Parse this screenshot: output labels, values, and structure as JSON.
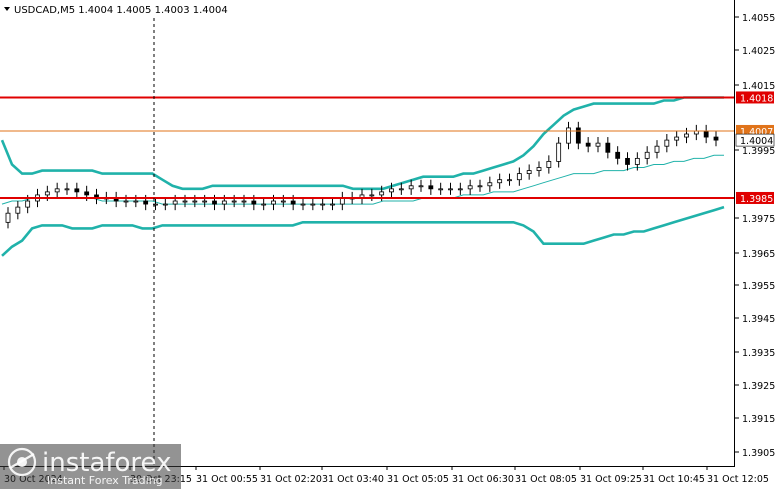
{
  "chart_data": {
    "type": "candlestick",
    "title": "USDCAD,M5  1.4004 1.4005 1.4003 1.4004",
    "symbol": "USDCAD",
    "timeframe": "M5",
    "ohlc_current": {
      "open": 1.4004,
      "high": 1.4005,
      "low": 1.4003,
      "close": 1.4004
    },
    "ylim": [
      1.3897,
      1.405
    ],
    "y_ticks": [
      "1.4055",
      "1.4025",
      "1.4015",
      "1.3995",
      "1.3975",
      "1.3965",
      "1.3955",
      "1.3945",
      "1.3935",
      "1.3925",
      "1.3915",
      "1.3905"
    ],
    "y_tick_values": [
      1.4055,
      1.4025,
      1.4015,
      1.3995,
      1.3975,
      1.3965,
      1.3955,
      1.3945,
      1.3935,
      1.3925,
      1.3915,
      1.3905
    ],
    "x_ticks": [
      "30 Oct 2024",
      "30 Oct 23:15",
      "31 Oct 00:55",
      "31 Oct 02:20",
      "31 Oct 03:40",
      "31 Oct 05:05",
      "31 Oct 06:30",
      "31 Oct 08:05",
      "31 Oct 09:25",
      "31 Oct 10:45",
      "31 Oct 12:05"
    ],
    "levels": [
      {
        "name": "resistance",
        "value": 1.4018,
        "label": "1.4018",
        "color": "#e00000"
      },
      {
        "name": "target",
        "value": 1.4007,
        "label": "1.4007",
        "color": "#e0731a"
      },
      {
        "name": "support",
        "value": 1.3985,
        "label": "1.3985",
        "color": "#e00000"
      }
    ],
    "current_price": {
      "value": 1.4004,
      "label": "1.4004"
    },
    "series": [
      {
        "name": "close",
        "values": [
          1.398,
          1.3982,
          1.3984,
          1.3986,
          1.3987,
          1.3988,
          1.3988,
          1.3987,
          1.3986,
          1.3985,
          1.3985,
          1.3984,
          1.3984,
          1.3984,
          1.3983,
          1.3983,
          1.3983,
          1.3984,
          1.3984,
          1.3984,
          1.3984,
          1.3983,
          1.3984,
          1.3984,
          1.3984,
          1.3983,
          1.3983,
          1.3984,
          1.3984,
          1.3983,
          1.3983,
          1.3983,
          1.3983,
          1.3983,
          1.3985,
          1.3985,
          1.3986,
          1.3986,
          1.3987,
          1.3988,
          1.3988,
          1.3989,
          1.3989,
          1.3988,
          1.3988,
          1.3988,
          1.3988,
          1.3989,
          1.3989,
          1.399,
          1.3991,
          1.3991,
          1.3993,
          1.3994,
          1.3995,
          1.3997,
          1.4003,
          1.4008,
          1.4003,
          1.4002,
          1.4003,
          1.4,
          1.3998,
          1.3996,
          1.3998,
          1.4,
          1.4002,
          1.4004,
          1.4005,
          1.4006,
          1.4007,
          1.4005,
          1.4004
        ]
      },
      {
        "name": "bollinger_upper",
        "values": [
          1.4004,
          1.3996,
          1.3993,
          1.3993,
          1.3994,
          1.3994,
          1.3994,
          1.3994,
          1.3994,
          1.3994,
          1.3993,
          1.3993,
          1.3993,
          1.3993,
          1.3993,
          1.3993,
          1.3991,
          1.3989,
          1.3988,
          1.3988,
          1.3988,
          1.3989,
          1.3989,
          1.3989,
          1.3989,
          1.3989,
          1.3989,
          1.3989,
          1.3989,
          1.3989,
          1.3989,
          1.3989,
          1.3989,
          1.3989,
          1.3989,
          1.3988,
          1.3988,
          1.3988,
          1.3988,
          1.3989,
          1.399,
          1.3991,
          1.3992,
          1.3992,
          1.3992,
          1.3992,
          1.3993,
          1.3993,
          1.3994,
          1.3995,
          1.3996,
          1.3997,
          1.3999,
          1.4002,
          1.4006,
          1.4009,
          1.4012,
          1.4014,
          1.4015,
          1.4016,
          1.4016,
          1.4016,
          1.4016,
          1.4016,
          1.4016,
          1.4016,
          1.4017,
          1.4017,
          1.4018,
          1.4018,
          1.4018,
          1.4018,
          1.4018
        ]
      },
      {
        "name": "bollinger_middle",
        "values": [
          1.3983,
          1.3984,
          1.3984,
          1.3985,
          1.3985,
          1.3985,
          1.3985,
          1.3985,
          1.3985,
          1.3985,
          1.3984,
          1.3984,
          1.3984,
          1.3984,
          1.3984,
          1.3984,
          1.3983,
          1.3983,
          1.3983,
          1.3983,
          1.3983,
          1.3983,
          1.3983,
          1.3983,
          1.3983,
          1.3983,
          1.3983,
          1.3983,
          1.3983,
          1.3983,
          1.3983,
          1.3983,
          1.3983,
          1.3983,
          1.3983,
          1.3983,
          1.3983,
          1.3983,
          1.3984,
          1.3984,
          1.3984,
          1.3984,
          1.3985,
          1.3985,
          1.3985,
          1.3985,
          1.3986,
          1.3986,
          1.3986,
          1.3987,
          1.3987,
          1.3987,
          1.3988,
          1.3989,
          1.399,
          1.3991,
          1.3992,
          1.3993,
          1.3993,
          1.3993,
          1.3994,
          1.3994,
          1.3994,
          1.3995,
          1.3995,
          1.3996,
          1.3996,
          1.3997,
          1.3997,
          1.3998,
          1.3998,
          1.3999,
          1.3999
        ]
      },
      {
        "name": "bollinger_lower",
        "values": [
          1.3966,
          1.3969,
          1.3971,
          1.3975,
          1.3976,
          1.3976,
          1.3976,
          1.3975,
          1.3975,
          1.3975,
          1.3976,
          1.3976,
          1.3976,
          1.3976,
          1.3975,
          1.3975,
          1.3976,
          1.3976,
          1.3976,
          1.3976,
          1.3976,
          1.3976,
          1.3976,
          1.3976,
          1.3976,
          1.3976,
          1.3976,
          1.3976,
          1.3976,
          1.3976,
          1.3977,
          1.3977,
          1.3977,
          1.3977,
          1.3977,
          1.3977,
          1.3977,
          1.3977,
          1.3977,
          1.3977,
          1.3977,
          1.3977,
          1.3977,
          1.3977,
          1.3977,
          1.3977,
          1.3977,
          1.3977,
          1.3977,
          1.3977,
          1.3977,
          1.3977,
          1.3976,
          1.3974,
          1.397,
          1.397,
          1.397,
          1.397,
          1.397,
          1.3971,
          1.3972,
          1.3973,
          1.3973,
          1.3974,
          1.3974,
          1.3975,
          1.3976,
          1.3977,
          1.3978,
          1.3979,
          1.398,
          1.3981,
          1.3982
        ]
      }
    ],
    "grid": false,
    "legend": "none"
  },
  "watermark": {
    "brand": "instaforex",
    "tagline": "Instant Forex Trading"
  },
  "colors": {
    "candle_up": "#000000",
    "candle_down": "#000000",
    "band": "#20b2aa",
    "resistance": "#e00000",
    "target": "#e0731a",
    "separator": "#000000",
    "watermark_green": "#1a7a3a"
  }
}
